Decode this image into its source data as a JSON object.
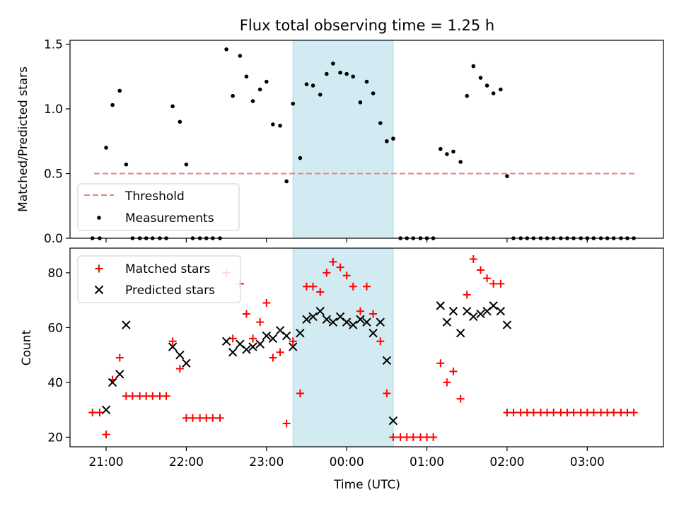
{
  "title": "Flux total observing time = 1.25 h",
  "chart_data": [
    {
      "type": "scatter",
      "ylabel": "Matched/Predicted stars",
      "ylim": [
        0,
        1.53
      ],
      "yticks": [
        "0.0",
        "0.5",
        "1.0",
        "1.5"
      ],
      "xlim": [
        20.55,
        27.95
      ],
      "threshold": 0.5,
      "threshold_x": [
        20.85,
        27.6
      ],
      "shaded_region": [
        23.33,
        24.58
      ],
      "colors": {
        "threshold": "#f08080",
        "measurements": "#000000",
        "shade": "#add8e6"
      },
      "legend": {
        "placement": "lower-left",
        "entries": [
          {
            "label": "Threshold",
            "marker": "dashed-line"
          },
          {
            "label": "Measurements",
            "marker": "dot"
          }
        ]
      },
      "series": [
        {
          "name": "Measurements",
          "x": [
            20.83,
            20.92,
            21.0,
            21.08,
            21.17,
            21.25,
            21.33,
            21.42,
            21.5,
            21.58,
            21.67,
            21.75,
            21.83,
            21.92,
            22.0,
            22.08,
            22.17,
            22.25,
            22.33,
            22.42,
            22.5,
            22.58,
            22.67,
            22.75,
            22.83,
            22.92,
            23.0,
            23.08,
            23.17,
            23.25,
            23.33,
            23.42,
            23.5,
            23.58,
            23.67,
            23.75,
            23.83,
            23.92,
            24.0,
            24.08,
            24.17,
            24.25,
            24.33,
            24.42,
            24.5,
            24.58,
            24.67,
            24.75,
            24.83,
            24.92,
            25.0,
            25.08,
            25.17,
            25.25,
            25.33,
            25.42,
            25.5,
            25.58,
            25.67,
            25.75,
            25.83,
            25.92,
            26.0,
            26.08,
            26.17,
            26.25,
            26.33,
            26.42,
            26.5,
            26.58,
            26.67,
            26.75,
            26.83,
            26.92,
            27.0,
            27.08,
            27.17,
            27.25,
            27.33,
            27.42,
            27.5,
            27.58
          ],
          "y": [
            0,
            0,
            0.7,
            1.03,
            1.14,
            0.57,
            0,
            0,
            0,
            0,
            0,
            0,
            1.02,
            0.9,
            0.57,
            0,
            0,
            0,
            0,
            0,
            1.46,
            1.1,
            1.41,
            1.25,
            1.06,
            1.15,
            1.21,
            0.88,
            0.87,
            0.44,
            1.04,
            0.62,
            1.19,
            1.18,
            1.11,
            1.27,
            1.35,
            1.28,
            1.27,
            1.25,
            1.05,
            1.21,
            1.12,
            0.89,
            0.75,
            0.77,
            0,
            0,
            0,
            0,
            0,
            0,
            0.69,
            0.65,
            0.67,
            0.59,
            1.1,
            1.33,
            1.24,
            1.18,
            1.12,
            1.15,
            0.48,
            0,
            0,
            0,
            0,
            0,
            0,
            0,
            0,
            0,
            0,
            0,
            0,
            0,
            0,
            0,
            0,
            0,
            0,
            0
          ]
        }
      ]
    },
    {
      "type": "scatter",
      "ylabel": "Count",
      "xlabel": "Time (UTC)",
      "ylim": [
        16.5,
        89
      ],
      "yticks": [
        "20",
        "40",
        "60",
        "80"
      ],
      "xlim": [
        20.55,
        27.95
      ],
      "xticks": [
        {
          "v": 21,
          "label": "21:00"
        },
        {
          "v": 22,
          "label": "22:00"
        },
        {
          "v": 23,
          "label": "23:00"
        },
        {
          "v": 24,
          "label": "00:00"
        },
        {
          "v": 25,
          "label": "01:00"
        },
        {
          "v": 26,
          "label": "02:00"
        },
        {
          "v": 27,
          "label": "03:00"
        }
      ],
      "shaded_region": [
        23.33,
        24.58
      ],
      "colors": {
        "matched": "#ff0000",
        "predicted": "#000000",
        "shade": "#add8e6"
      },
      "legend": {
        "placement": "upper-left",
        "entries": [
          {
            "label": "Matched stars",
            "marker": "plus"
          },
          {
            "label": "Predicted stars",
            "marker": "x"
          }
        ]
      },
      "series": [
        {
          "name": "Matched stars",
          "x": [
            20.83,
            20.92,
            21.0,
            21.08,
            21.17,
            21.25,
            21.33,
            21.42,
            21.5,
            21.58,
            21.67,
            21.75,
            21.83,
            21.92,
            22.0,
            22.08,
            22.17,
            22.25,
            22.33,
            22.42,
            22.5,
            22.58,
            22.67,
            22.75,
            22.83,
            22.92,
            23.0,
            23.08,
            23.17,
            23.25,
            23.33,
            23.42,
            23.5,
            23.58,
            23.67,
            23.75,
            23.83,
            23.92,
            24.0,
            24.08,
            24.17,
            24.25,
            24.33,
            24.42,
            24.5,
            24.58,
            24.67,
            24.75,
            24.83,
            24.92,
            25.0,
            25.08,
            25.17,
            25.25,
            25.33,
            25.42,
            25.5,
            25.58,
            25.67,
            25.75,
            25.83,
            25.92,
            26.0,
            26.08,
            26.17,
            26.25,
            26.33,
            26.42,
            26.5,
            26.58,
            26.67,
            26.75,
            26.83,
            26.92,
            27.0,
            27.08,
            27.17,
            27.25,
            27.33,
            27.42,
            27.5,
            27.58
          ],
          "y": [
            29,
            29,
            21,
            41,
            49,
            35,
            35,
            35,
            35,
            35,
            35,
            35,
            55,
            45,
            27,
            27,
            27,
            27,
            27,
            27,
            80,
            56,
            76,
            65,
            56,
            62,
            69,
            49,
            51,
            25,
            55,
            36,
            75,
            75,
            73,
            80,
            84,
            82,
            79,
            75,
            66,
            75,
            65,
            55,
            36,
            20,
            20,
            20,
            20,
            20,
            20,
            20,
            47,
            40,
            44,
            34,
            72,
            85,
            81,
            78,
            76,
            76,
            29,
            29,
            29,
            29,
            29,
            29,
            29,
            29,
            29,
            29,
            29,
            29,
            29,
            29,
            29,
            29,
            29,
            29,
            29,
            29
          ]
        },
        {
          "name": "Predicted stars",
          "x": [
            21.0,
            21.08,
            21.17,
            21.25,
            21.83,
            21.92,
            22.0,
            22.5,
            22.58,
            22.67,
            22.75,
            22.83,
            22.92,
            23.0,
            23.08,
            23.17,
            23.25,
            23.33,
            23.42,
            23.5,
            23.58,
            23.67,
            23.75,
            23.83,
            23.92,
            24.0,
            24.08,
            24.17,
            24.25,
            24.33,
            24.42,
            24.5,
            24.58,
            25.17,
            25.25,
            25.33,
            25.42,
            25.5,
            25.58,
            25.67,
            25.75,
            25.83,
            25.92,
            26.0
          ],
          "y": [
            30,
            40,
            43,
            61,
            53,
            50,
            47,
            55,
            51,
            54,
            52,
            53,
            54,
            57,
            56,
            59,
            57,
            53,
            58,
            63,
            64,
            66,
            63,
            62,
            64,
            62,
            61,
            63,
            62,
            58,
            62,
            48,
            26,
            68,
            62,
            66,
            58,
            66,
            64,
            65,
            66,
            68,
            66,
            61
          ]
        }
      ]
    }
  ]
}
